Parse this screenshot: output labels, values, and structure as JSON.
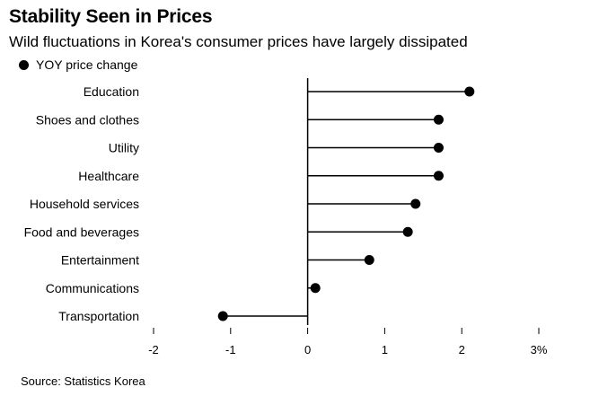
{
  "chart_data": {
    "type": "lollipop",
    "title": "Stability Seen in Prices",
    "subtitle": "Wild fluctuations in Korea's consumer prices have largely dissipated",
    "legend": {
      "label": "YOY price change",
      "placement": "top-left"
    },
    "categories": [
      "Education",
      "Shoes and clothes",
      "Utility",
      "Healthcare",
      "Household services",
      "Food and beverages",
      "Entertainment",
      "Communications",
      "Transportation"
    ],
    "series": [
      {
        "name": "YOY price change",
        "values": [
          2.1,
          1.7,
          1.7,
          1.7,
          1.4,
          1.3,
          0.8,
          0.1,
          -1.1
        ]
      }
    ],
    "xlim": [
      -2,
      3
    ],
    "xticks": [
      -2,
      -1,
      0,
      1,
      2,
      3
    ],
    "xtick_labels": [
      "-2",
      "-1",
      "0",
      "1",
      "2",
      "3%"
    ],
    "xlabel": "",
    "ylabel": "",
    "grid": false,
    "source": "Source: Statistics Korea",
    "colors": {
      "marker": "#000000",
      "line": "#000000",
      "axis": "#000000"
    }
  }
}
